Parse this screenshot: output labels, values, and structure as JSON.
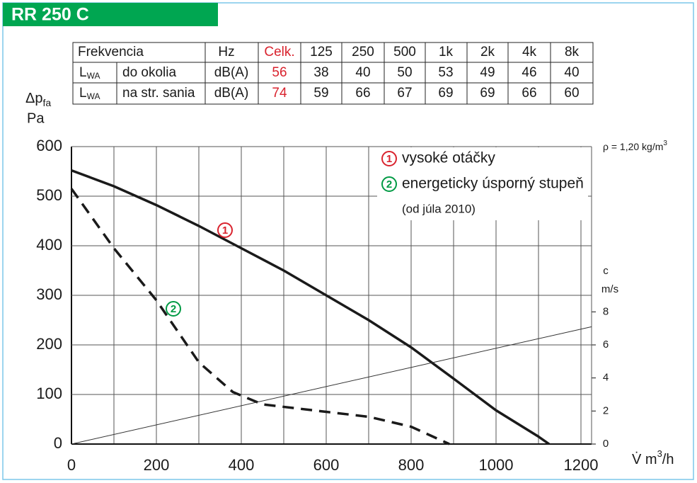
{
  "header": {
    "title": "RR 250 C"
  },
  "table": {
    "header": [
      "Frekvencia",
      "Hz",
      "Celk.",
      "125",
      "250",
      "500",
      "1k",
      "2k",
      "4k",
      "8k"
    ],
    "rows": [
      {
        "label": "L",
        "label_sub": "WA",
        "name": "do okolia",
        "unit": "dB(A)",
        "values": [
          "56",
          "38",
          "40",
          "50",
          "53",
          "49",
          "46",
          "40"
        ]
      },
      {
        "label": "L",
        "label_sub": "WA",
        "name": "na str. sania",
        "unit": "dB(A)",
        "values": [
          "74",
          "59",
          "66",
          "67",
          "69",
          "69",
          "66",
          "60"
        ]
      }
    ]
  },
  "chart_data": {
    "type": "line",
    "ylabel": "Δp",
    "ylabel_sub": "fa",
    "ylabel_unit": "Pa",
    "y2label": "c",
    "y2label_unit": "m/s",
    "xlabel": "V̇ m",
    "xlabel_sup": "3",
    "xlabel_end": "/h",
    "annotation": "ρ = 1,20 kg/m",
    "annotation_sup": "3",
    "xlim": [
      0,
      1225
    ],
    "xticks": [
      0,
      200,
      400,
      600,
      800,
      1000,
      1200
    ],
    "xgrid": [
      100,
      300,
      500,
      700,
      900,
      1100
    ],
    "ylim": [
      0,
      600
    ],
    "yticks": [
      0,
      100,
      200,
      300,
      400,
      500,
      600
    ],
    "y2lim": [
      0,
      18
    ],
    "y2ticks": [
      0,
      2,
      4,
      6,
      8
    ],
    "grid": true,
    "series": [
      {
        "name": "vysoké otáčky",
        "marker": "1",
        "color": "#d9232e",
        "line_color": "#1a1a1a",
        "dash": false,
        "x": [
          0,
          100,
          200,
          300,
          400,
          500,
          600,
          700,
          800,
          900,
          1000,
          1100,
          1125
        ],
        "values": [
          552,
          520,
          482,
          440,
          395,
          350,
          300,
          250,
          195,
          132,
          68,
          15,
          0
        ]
      },
      {
        "name": "energeticky úsporný stupeň",
        "marker": "2",
        "note": "(od júla 2010)",
        "color": "#009a44",
        "line_color": "#1a1a1a",
        "dash": true,
        "x": [
          0,
          100,
          200,
          300,
          380,
          450,
          600,
          700,
          800,
          890
        ],
        "values": [
          515,
          395,
          290,
          165,
          105,
          80,
          65,
          55,
          35,
          0
        ]
      },
      {
        "axis": "y2",
        "line_color": "#333333",
        "dash": false,
        "thin": true,
        "x": [
          0,
          1225
        ],
        "values": [
          0,
          7.1
        ]
      }
    ]
  }
}
